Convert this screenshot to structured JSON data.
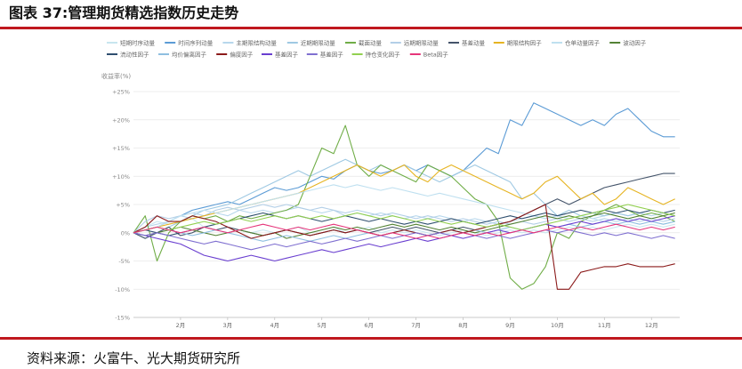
{
  "figure": {
    "title": "图表 37:管理期货精选指数历史走势",
    "source": "资料来源：火富牛、光大期货研究所"
  },
  "colors": {
    "accent_rule": "#c0181e"
  },
  "chart_data": {
    "type": "line",
    "ylabel": "收益率(%)",
    "xlabel": "",
    "ylim": [
      -15,
      25
    ],
    "yticks": [
      25,
      20,
      15,
      10,
      5,
      0,
      -5,
      -10,
      -15
    ],
    "ytick_labels": [
      "+25%",
      "+20%",
      "+15%",
      "+10%",
      "+5%",
      "0%",
      "-5%",
      "-10%",
      "-15%"
    ],
    "x": [
      1.0,
      1.25,
      1.5,
      1.75,
      2.0,
      2.25,
      2.5,
      2.75,
      3.0,
      3.25,
      3.5,
      3.75,
      4.0,
      4.25,
      4.5,
      4.75,
      5.0,
      5.25,
      5.5,
      5.75,
      6.0,
      6.25,
      6.5,
      6.75,
      7.0,
      7.25,
      7.5,
      7.75,
      8.0,
      8.25,
      8.5,
      8.75,
      9.0,
      9.25,
      9.5,
      9.75,
      10.0,
      10.25,
      10.5,
      10.75,
      11.0,
      11.25,
      11.5,
      11.75,
      12.0,
      12.25,
      12.5
    ],
    "categories": [
      "2月",
      "3月",
      "4月",
      "5月",
      "6月",
      "7月",
      "8月",
      "9月",
      "10月",
      "11月",
      "12月"
    ],
    "category_positions": [
      2,
      3,
      4,
      5,
      6,
      7,
      8,
      9,
      10,
      11,
      12
    ],
    "xlim": [
      1,
      12.6
    ],
    "grid": true,
    "legend_position": "top",
    "series": [
      {
        "name": "短期时序动量",
        "color": "#c8e6ef",
        "values": [
          0,
          1,
          2,
          1.5,
          2,
          2.5,
          1,
          0.5,
          1,
          0.5,
          0,
          0.5,
          0,
          0.5,
          1,
          0,
          0.5,
          1,
          0,
          0.5,
          1,
          0,
          0.5,
          0,
          0.5,
          0,
          -0.5,
          0,
          0.5,
          0,
          -0.5,
          0,
          0.5,
          0,
          0.5,
          0,
          0.5,
          1,
          0.5,
          1,
          0.5,
          1,
          1.5,
          1,
          1.5,
          1,
          1.5
        ]
      },
      {
        "name": "时间序列动量",
        "color": "#5b9bd5",
        "values": [
          0,
          0.5,
          1,
          2,
          3,
          4,
          4.5,
          5,
          5.5,
          5,
          6,
          7,
          8,
          7.5,
          8,
          9,
          10,
          9.5,
          11,
          12,
          11,
          10.5,
          11,
          12,
          11,
          12,
          11,
          10,
          11,
          13,
          15,
          14,
          20,
          19,
          23,
          22,
          21,
          20,
          19,
          20,
          19,
          21,
          22,
          20,
          18,
          17,
          17
        ]
      },
      {
        "name": "主期限结构动量",
        "color": "#b7d7ec",
        "values": [
          0,
          1,
          1.5,
          2,
          3,
          2.5,
          3,
          3.5,
          3,
          4,
          3.5,
          4,
          3.5,
          4,
          4.5,
          4,
          3.5,
          4,
          3,
          3.5,
          3,
          3.5,
          3,
          2.5,
          3,
          2.5,
          3,
          2.5,
          2,
          2.5,
          2,
          1.5,
          2,
          2.5,
          3,
          2.5,
          3,
          2.5,
          3,
          2.5,
          3,
          3.5,
          3,
          3.5,
          3,
          3.5,
          3
        ]
      },
      {
        "name": "近期期限动量",
        "color": "#9fc9e3",
        "values": [
          0,
          -1,
          0,
          1,
          2,
          3,
          4,
          4.5,
          5,
          6,
          7,
          8,
          9,
          10,
          11,
          10,
          11,
          12,
          13,
          12,
          11,
          12,
          11,
          12,
          11,
          10,
          9,
          10,
          11,
          12,
          11,
          10,
          9,
          6,
          7,
          5,
          3,
          4,
          3,
          3.5,
          3,
          3.5,
          3,
          3.5,
          4,
          3.5,
          3
        ]
      },
      {
        "name": "截面动量",
        "color": "#70ad47",
        "values": [
          0,
          3,
          -5,
          0,
          2,
          3,
          2.5,
          3,
          2,
          3,
          2.5,
          3,
          3.5,
          4,
          5,
          10,
          15,
          14,
          19,
          12,
          10,
          12,
          11,
          10,
          9,
          12,
          11,
          10,
          8,
          6,
          5,
          2,
          -8,
          -10,
          -9,
          -6,
          0,
          -1,
          2,
          3,
          4,
          5,
          4,
          3,
          3.5,
          3,
          2
        ]
      },
      {
        "name": "远期期限动量",
        "color": "#b3cfe7",
        "values": [
          0,
          2,
          3,
          2.5,
          3,
          3.5,
          3,
          4,
          4.5,
          4,
          4.5,
          5,
          4.5,
          5,
          4.5,
          4,
          4.5,
          4,
          3.5,
          4,
          3.5,
          3,
          3.5,
          3,
          2.5,
          3,
          2.5,
          2,
          2.5,
          2,
          1.5,
          2,
          1.5,
          2,
          1.5,
          2,
          2.5,
          2,
          2.5,
          2,
          2.5,
          2,
          2.5,
          2,
          2.5,
          2,
          2.5
        ]
      },
      {
        "name": "基差动量",
        "color": "#44546a",
        "values": [
          0,
          -1,
          0,
          1,
          -0.5,
          0,
          1,
          0.5,
          1,
          0.5,
          0,
          -0.5,
          0,
          0.5,
          0,
          -0.5,
          0,
          0.5,
          0,
          0.5,
          0,
          0.5,
          1,
          0.5,
          1,
          0.5,
          0,
          0.5,
          1,
          0.5,
          1,
          1.5,
          2,
          3,
          4,
          5,
          6,
          5,
          6,
          7,
          8,
          8.5,
          9,
          9.5,
          10,
          10.5,
          10.5
        ]
      },
      {
        "name": "期限结构因子",
        "color": "#e6b422",
        "values": [
          0,
          0.5,
          1,
          1.5,
          2,
          2.5,
          3,
          3.5,
          4,
          4.5,
          5,
          5.5,
          6,
          6.5,
          7,
          8,
          9,
          10,
          11,
          12,
          11,
          10,
          11,
          12,
          10,
          9,
          11,
          12,
          11,
          10,
          9,
          8,
          7,
          6,
          7,
          9,
          10,
          8,
          6,
          7,
          5,
          6,
          8,
          7,
          6,
          5,
          6
        ]
      },
      {
        "name": "仓单动量因子",
        "color": "#bfe0f0",
        "values": [
          0,
          0.5,
          1,
          2,
          3,
          3.5,
          4,
          3.5,
          4,
          4.5,
          5,
          5.5,
          6,
          6.5,
          7,
          7.5,
          8,
          8.5,
          8,
          8.5,
          8,
          7.5,
          8,
          7.5,
          7,
          6.5,
          7,
          6.5,
          6,
          5.5,
          5,
          4.5,
          4,
          3.5,
          3,
          2.5,
          3,
          2.5,
          3,
          2.5,
          2,
          2.5,
          2,
          2.5,
          2,
          1.5,
          2
        ]
      },
      {
        "name": "波动因子",
        "color": "#548235",
        "values": [
          0,
          -0.5,
          0,
          0.5,
          1,
          0.5,
          0,
          -0.5,
          0,
          0.5,
          0,
          -0.5,
          0,
          -1,
          -0.5,
          0,
          0.5,
          1,
          0.5,
          1,
          0.5,
          1,
          1.5,
          1,
          1.5,
          1,
          0.5,
          1,
          0.5,
          0,
          0.5,
          1,
          1.5,
          2,
          2.5,
          3,
          2.5,
          3,
          2.5,
          3,
          3.5,
          3,
          2.5,
          3,
          2.5,
          3,
          3.5
        ]
      },
      {
        "name": "流动性因子",
        "color": "#2f4f6f",
        "values": [
          0,
          0.5,
          0,
          -0.5,
          0,
          0.5,
          1,
          1.5,
          2,
          2.5,
          3,
          3.5,
          3,
          2.5,
          3,
          2.5,
          2,
          2.5,
          3,
          2.5,
          2,
          2.5,
          2,
          1.5,
          2,
          1.5,
          2,
          2.5,
          2,
          1.5,
          2,
          2.5,
          3,
          2.5,
          3,
          3.5,
          3,
          3.5,
          4,
          3.5,
          4,
          3.5,
          4,
          3.5,
          4,
          3.5,
          4
        ]
      },
      {
        "name": "均价偏离因子",
        "color": "#8fbfe0",
        "values": [
          0,
          0.5,
          1,
          0.5,
          0,
          -0.5,
          0,
          0.5,
          0,
          -0.5,
          -1,
          -1.5,
          -1,
          -0.5,
          -1,
          -1.5,
          -1,
          -0.5,
          -1,
          -0.5,
          0,
          -0.5,
          0,
          0.5,
          0,
          -0.5,
          0,
          0.5,
          0,
          0.5,
          0,
          0.5,
          1,
          0.5,
          1,
          1.5,
          1,
          1.5,
          1,
          1.5,
          2,
          1.5,
          2,
          1.5,
          2,
          1.5,
          2
        ]
      },
      {
        "name": "偏度因子",
        "color": "#8b1a1a",
        "values": [
          0,
          1,
          3,
          2,
          2,
          3,
          2.5,
          2,
          1,
          0,
          -1,
          -0.5,
          0,
          0.5,
          0,
          -0.5,
          0,
          0.5,
          0,
          0.5,
          0,
          -0.5,
          0,
          0.5,
          0,
          -0.5,
          0,
          0.5,
          0,
          0.5,
          1,
          1.5,
          2,
          3,
          4,
          5,
          -10,
          -10,
          -7,
          -6.5,
          -6,
          -6,
          -5.5,
          -6,
          -6,
          -6,
          -5.5
        ]
      },
      {
        "name": "基差因子",
        "color": "#6a3fd0",
        "values": [
          0,
          -0.5,
          -1,
          -1.5,
          -2,
          -3,
          -4,
          -4.5,
          -5,
          -4.5,
          -4,
          -4.5,
          -5,
          -4.5,
          -4,
          -3.5,
          -3,
          -3.5,
          -3,
          -2.5,
          -2,
          -2.5,
          -2,
          -1.5,
          -1,
          -1.5,
          -1,
          -0.5,
          -1,
          -0.5,
          0,
          0.5,
          0,
          0.5,
          1,
          1.5,
          1,
          1.5,
          2,
          1.5,
          2,
          2.5,
          2,
          2.5,
          2,
          2.5,
          3
        ]
      },
      {
        "name": "基差因子",
        "color": "#7f6fd0",
        "values": [
          0,
          -0.5,
          0,
          -0.5,
          -1,
          -1.5,
          -2,
          -1.5,
          -2,
          -2.5,
          -3,
          -2.5,
          -2,
          -2.5,
          -2,
          -1.5,
          -2,
          -1.5,
          -1,
          -1.5,
          -1,
          -0.5,
          -1,
          -0.5,
          0,
          -0.5,
          0,
          -0.5,
          0,
          -0.5,
          -1,
          -0.5,
          -1,
          -0.5,
          0,
          0.5,
          0,
          0.5,
          0,
          -0.5,
          0,
          -0.5,
          0,
          -0.5,
          -1,
          -0.5,
          -1
        ]
      },
      {
        "name": "持仓变化因子",
        "color": "#92d050",
        "values": [
          0,
          0.5,
          1,
          0.5,
          1,
          1.5,
          2,
          1.5,
          2,
          2.5,
          2,
          2.5,
          3,
          2.5,
          3,
          2.5,
          3,
          2.5,
          3,
          3.5,
          3,
          2.5,
          3,
          2.5,
          2,
          2.5,
          2,
          1.5,
          2,
          1.5,
          1,
          1.5,
          1,
          0.5,
          1,
          1.5,
          2,
          2.5,
          3,
          3.5,
          4,
          4.5,
          5,
          4.5,
          4,
          3.5,
          3
        ]
      },
      {
        "name": "Beta因子",
        "color": "#e6357a",
        "values": [
          0,
          0.5,
          1,
          0.5,
          0,
          0.5,
          1,
          0.5,
          0,
          0.5,
          1,
          1.5,
          1,
          0.5,
          1,
          0.5,
          1,
          1.5,
          1,
          0.5,
          0,
          -0.5,
          0,
          -0.5,
          -1,
          -0.5,
          -1,
          -0.5,
          0,
          -0.5,
          0,
          -0.5,
          0,
          0.5,
          0,
          0.5,
          1,
          0.5,
          1,
          0.5,
          1,
          1.5,
          1,
          0.5,
          1,
          0.5,
          1
        ]
      }
    ]
  }
}
